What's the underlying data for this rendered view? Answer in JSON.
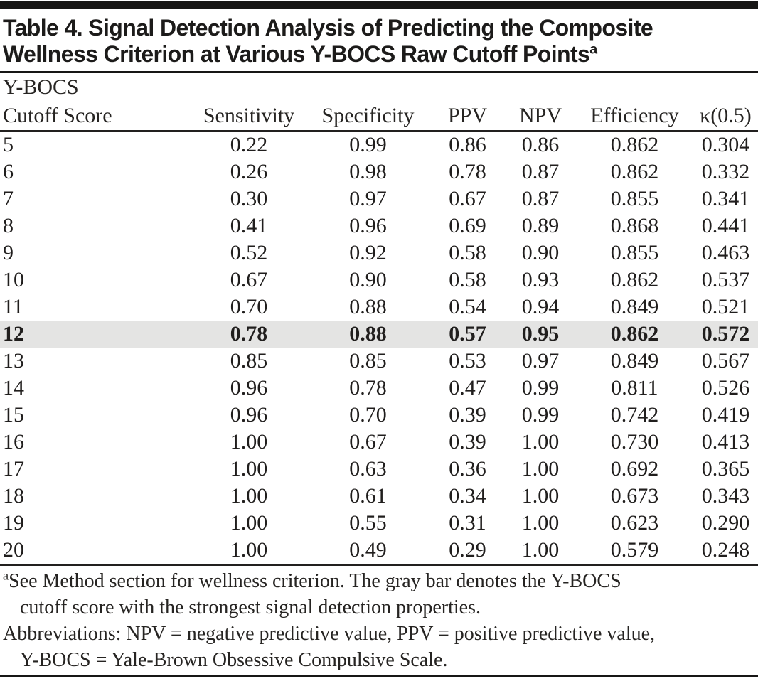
{
  "title": {
    "line1": "Table 4. Signal Detection Analysis of Predicting the Composite",
    "line2": "Wellness Criterion at Various Y-BOCS Raw Cutoff Points",
    "superscript": "a"
  },
  "header": {
    "column1_line1": "Y-BOCS",
    "column1_line2": "Cutoff Score",
    "metrics": [
      "Sensitivity",
      "Specificity",
      "PPV",
      "NPV",
      "Efficiency",
      "κ(0.5)"
    ]
  },
  "rows": [
    {
      "cutoff": "5",
      "values": [
        "0.22",
        "0.99",
        "0.86",
        "0.86",
        "0.862",
        "0.304"
      ],
      "highlight": false
    },
    {
      "cutoff": "6",
      "values": [
        "0.26",
        "0.98",
        "0.78",
        "0.87",
        "0.862",
        "0.332"
      ],
      "highlight": false
    },
    {
      "cutoff": "7",
      "values": [
        "0.30",
        "0.97",
        "0.67",
        "0.87",
        "0.855",
        "0.341"
      ],
      "highlight": false
    },
    {
      "cutoff": "8",
      "values": [
        "0.41",
        "0.96",
        "0.69",
        "0.89",
        "0.868",
        "0.441"
      ],
      "highlight": false
    },
    {
      "cutoff": "9",
      "values": [
        "0.52",
        "0.92",
        "0.58",
        "0.90",
        "0.855",
        "0.463"
      ],
      "highlight": false
    },
    {
      "cutoff": "10",
      "values": [
        "0.67",
        "0.90",
        "0.58",
        "0.93",
        "0.862",
        "0.537"
      ],
      "highlight": false
    },
    {
      "cutoff": "11",
      "values": [
        "0.70",
        "0.88",
        "0.54",
        "0.94",
        "0.849",
        "0.521"
      ],
      "highlight": false
    },
    {
      "cutoff": "12",
      "values": [
        "0.78",
        "0.88",
        "0.57",
        "0.95",
        "0.862",
        "0.572"
      ],
      "highlight": true
    },
    {
      "cutoff": "13",
      "values": [
        "0.85",
        "0.85",
        "0.53",
        "0.97",
        "0.849",
        "0.567"
      ],
      "highlight": false
    },
    {
      "cutoff": "14",
      "values": [
        "0.96",
        "0.78",
        "0.47",
        "0.99",
        "0.811",
        "0.526"
      ],
      "highlight": false
    },
    {
      "cutoff": "15",
      "values": [
        "0.96",
        "0.70",
        "0.39",
        "0.99",
        "0.742",
        "0.419"
      ],
      "highlight": false
    },
    {
      "cutoff": "16",
      "values": [
        "1.00",
        "0.67",
        "0.39",
        "1.00",
        "0.730",
        "0.413"
      ],
      "highlight": false
    },
    {
      "cutoff": "17",
      "values": [
        "1.00",
        "0.63",
        "0.36",
        "1.00",
        "0.692",
        "0.365"
      ],
      "highlight": false
    },
    {
      "cutoff": "18",
      "values": [
        "1.00",
        "0.61",
        "0.34",
        "1.00",
        "0.673",
        "0.343"
      ],
      "highlight": false
    },
    {
      "cutoff": "19",
      "values": [
        "1.00",
        "0.55",
        "0.31",
        "1.00",
        "0.623",
        "0.290"
      ],
      "highlight": false
    },
    {
      "cutoff": "20",
      "values": [
        "1.00",
        "0.49",
        "0.29",
        "1.00",
        "0.579",
        "0.248"
      ],
      "highlight": false
    }
  ],
  "footnote_lines": [
    {
      "sup": "a",
      "text": "See Method section for wellness criterion. The gray bar denotes the Y-BOCS",
      "indent": false
    },
    {
      "sup": "",
      "text": "cutoff score with the strongest signal detection properties.",
      "indent": true
    },
    {
      "sup": "",
      "text": "Abbreviations: NPV = negative predictive value, PPV = positive predictive value,",
      "indent": false
    },
    {
      "sup": "",
      "text": "Y-BOCS = Yale-Brown Obsessive Compulsive Scale.",
      "indent": true
    }
  ],
  "colors": {
    "highlight_row": "#e4e4e3",
    "text": "#201e1d",
    "rule": "#171615"
  }
}
